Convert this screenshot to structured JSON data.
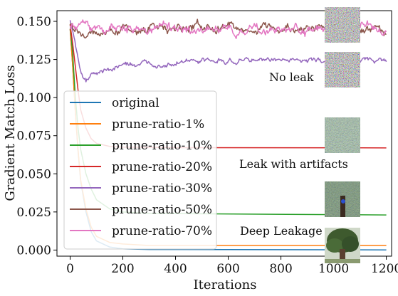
{
  "chart_data": {
    "type": "line",
    "title": "",
    "xlabel": "Iterations",
    "ylabel": "Gradient Match Loss",
    "xlim": [
      -50,
      1220
    ],
    "ylim": [
      -0.004,
      0.157
    ],
    "x_ticks": [
      0,
      200,
      400,
      600,
      800,
      1000,
      1200
    ],
    "x_tick_labels": [
      "0",
      "200",
      "400",
      "600",
      "800",
      "1000",
      "1200"
    ],
    "y_ticks": [
      0.0,
      0.025,
      0.05,
      0.075,
      0.1,
      0.125,
      0.15
    ],
    "y_tick_labels": [
      "0.000",
      "0.025",
      "0.050",
      "0.075",
      "0.100",
      "0.125",
      "0.150"
    ],
    "grid": false,
    "legend_position": "left",
    "annotations": [
      "No leak",
      "Leak with artifacts",
      "Deep Leakage"
    ],
    "series": [
      {
        "name": "original",
        "color": "#1f77b4",
        "points": [
          [
            0,
            0.145
          ],
          [
            10,
            0.12
          ],
          [
            20,
            0.09
          ],
          [
            30,
            0.065
          ],
          [
            40,
            0.045
          ],
          [
            60,
            0.025
          ],
          [
            80,
            0.012
          ],
          [
            100,
            0.006
          ],
          [
            150,
            0.002
          ],
          [
            200,
            0.0008
          ],
          [
            300,
            0.0004
          ],
          [
            1200,
            0.0001
          ]
        ]
      },
      {
        "name": "prune-ratio-1%",
        "color": "#ff7f0e",
        "points": [
          [
            0,
            0.145
          ],
          [
            10,
            0.12
          ],
          [
            20,
            0.09
          ],
          [
            30,
            0.066
          ],
          [
            40,
            0.046
          ],
          [
            60,
            0.027
          ],
          [
            80,
            0.015
          ],
          [
            100,
            0.009
          ],
          [
            150,
            0.005
          ],
          [
            200,
            0.004
          ],
          [
            300,
            0.003
          ],
          [
            1200,
            0.003
          ]
        ]
      },
      {
        "name": "prune-ratio-10%",
        "color": "#2ca02c",
        "points": [
          [
            0,
            0.148
          ],
          [
            10,
            0.128
          ],
          [
            20,
            0.1
          ],
          [
            30,
            0.08
          ],
          [
            40,
            0.066
          ],
          [
            60,
            0.05
          ],
          [
            80,
            0.04
          ],
          [
            100,
            0.033
          ],
          [
            150,
            0.027
          ],
          [
            200,
            0.025
          ],
          [
            300,
            0.024
          ],
          [
            1200,
            0.023
          ]
        ]
      },
      {
        "name": "prune-ratio-20%",
        "color": "#d62728",
        "points": [
          [
            0,
            0.148
          ],
          [
            10,
            0.135
          ],
          [
            20,
            0.12
          ],
          [
            30,
            0.105
          ],
          [
            40,
            0.092
          ],
          [
            60,
            0.08
          ],
          [
            80,
            0.073
          ],
          [
            100,
            0.07
          ],
          [
            150,
            0.068
          ],
          [
            200,
            0.0675
          ],
          [
            400,
            0.0672
          ],
          [
            1200,
            0.067
          ]
        ]
      },
      {
        "name": "prune-ratio-30%",
        "color": "#9467bd",
        "noise": 0.002,
        "points": [
          [
            0,
            0.15
          ],
          [
            20,
            0.135
          ],
          [
            40,
            0.118
          ],
          [
            60,
            0.112
          ],
          [
            100,
            0.116
          ],
          [
            200,
            0.121
          ],
          [
            400,
            0.123
          ],
          [
            600,
            0.124
          ],
          [
            800,
            0.125
          ],
          [
            1000,
            0.124
          ],
          [
            1200,
            0.125
          ]
        ]
      },
      {
        "name": "prune-ratio-50%",
        "color": "#8c564b",
        "noise": 0.0035,
        "points": [
          [
            0,
            0.15
          ],
          [
            20,
            0.145
          ],
          [
            40,
            0.142
          ],
          [
            100,
            0.143
          ],
          [
            200,
            0.145
          ],
          [
            400,
            0.146
          ],
          [
            600,
            0.146
          ],
          [
            800,
            0.145
          ],
          [
            1000,
            0.146
          ],
          [
            1150,
            0.145
          ],
          [
            1200,
            0.142
          ]
        ]
      },
      {
        "name": "prune-ratio-70%",
        "color": "#e377c2",
        "noise": 0.0038,
        "points": [
          [
            0,
            0.148
          ],
          [
            20,
            0.146
          ],
          [
            40,
            0.147
          ],
          [
            100,
            0.147
          ],
          [
            200,
            0.146
          ],
          [
            400,
            0.146
          ],
          [
            600,
            0.145
          ],
          [
            800,
            0.144
          ],
          [
            1000,
            0.146
          ],
          [
            1150,
            0.147
          ],
          [
            1200,
            0.142
          ]
        ]
      }
    ]
  }
}
